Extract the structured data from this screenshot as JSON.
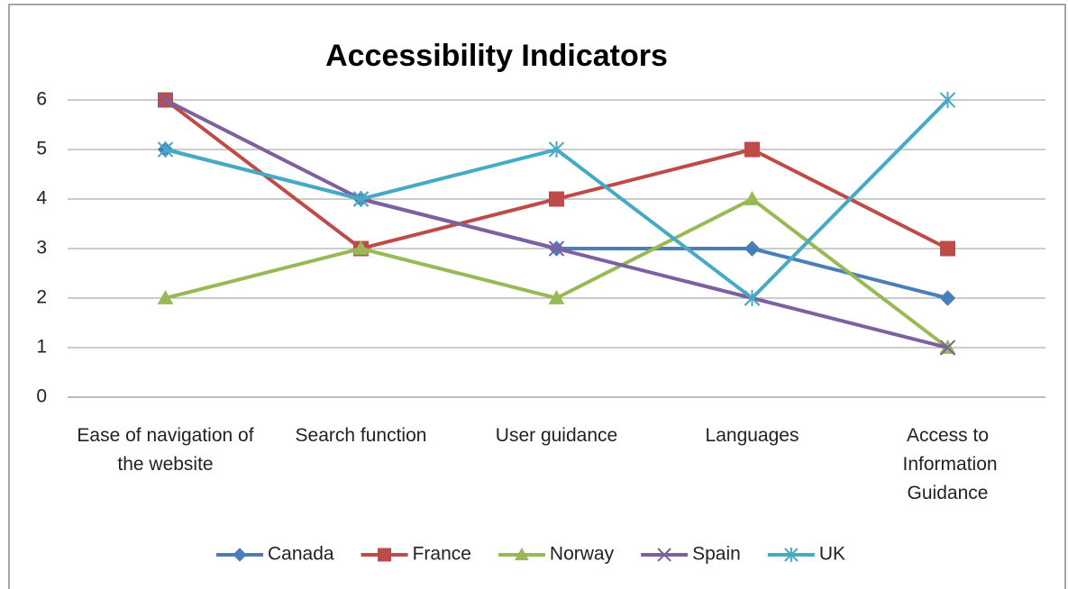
{
  "chart_data": {
    "type": "line",
    "title": "Accessibility Indicators",
    "categories": [
      "Ease of navigation of the website",
      "Search function",
      "User guidance",
      "Languages",
      "Access to Information Guidance"
    ],
    "series": [
      {
        "name": "Canada",
        "color": "#4a7ebb",
        "marker": "diamond",
        "values": [
          5,
          4,
          3,
          3,
          2
        ]
      },
      {
        "name": "France",
        "color": "#be4b48",
        "marker": "square",
        "values": [
          6,
          3,
          4,
          5,
          3
        ]
      },
      {
        "name": "Norway",
        "color": "#98b954",
        "marker": "triangle",
        "values": [
          2,
          3,
          2,
          4,
          1
        ]
      },
      {
        "name": "Spain",
        "color": "#7d60a0",
        "marker": "x",
        "values": [
          6,
          4,
          3,
          2,
          1
        ]
      },
      {
        "name": "UK",
        "color": "#46aac5",
        "marker": "asterisk",
        "values": [
          5,
          4,
          5,
          2,
          6
        ]
      }
    ],
    "ylim": [
      0,
      6
    ],
    "yticks": [
      0,
      1,
      2,
      3,
      4,
      5,
      6
    ],
    "grid": true,
    "legend": "bottom"
  }
}
